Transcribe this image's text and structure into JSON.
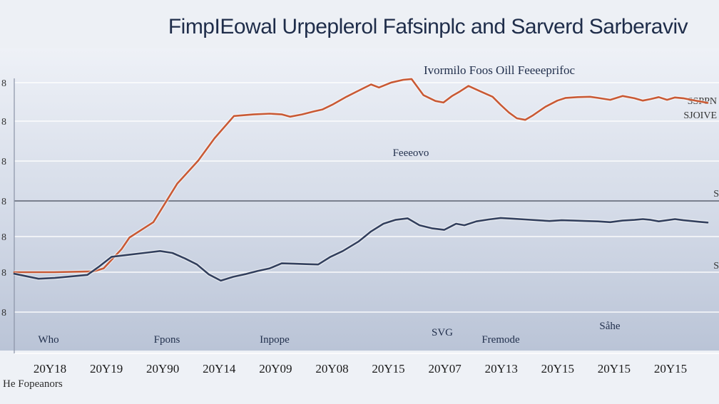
{
  "chart_data": {
    "type": "line",
    "title": "FimpIEowal Urpeplerol Fafsinplc and Sarverd Sarberaviv",
    "subtitle": "Ivormilo Foos Oill Feeeeprifoc",
    "x_tick_labels": [
      "20Y18",
      "20Y19",
      "20Y90",
      "20Y14",
      "20Y09",
      "20Y08",
      "20Y15",
      "20Y07",
      "20Y13",
      "20Y15",
      "20Y15",
      "20Y15"
    ],
    "y_tick_labels": [
      "8",
      "8",
      "8",
      "8",
      "8",
      "8",
      "8"
    ],
    "legend_labels": [
      "SSPPN",
      "SJOIVE"
    ],
    "annotations": [
      {
        "id": "foecoie",
        "text": "Feeeovo"
      },
      {
        "id": "who",
        "text": "Who"
      },
      {
        "id": "fpons",
        "text": "Fpons"
      },
      {
        "id": "inpopo",
        "text": "Inpope"
      },
      {
        "id": "svo",
        "text": "SVG"
      },
      {
        "id": "fremode",
        "text": "Fremode"
      },
      {
        "id": "sahe",
        "text": "Såhe"
      }
    ],
    "footnote": "He Fopeanors",
    "right_marker": "S",
    "series": [
      {
        "color": "#c95a35",
        "points": [
          [
            0,
            60
          ],
          [
            10,
            60
          ],
          [
            20,
            60.2
          ],
          [
            22.5,
            61
          ],
          [
            27,
            66
          ],
          [
            29,
            69
          ],
          [
            35,
            73
          ],
          [
            38,
            78
          ],
          [
            41,
            83
          ],
          [
            46.3,
            89
          ],
          [
            50.4,
            94.8
          ],
          [
            55.3,
            100.6
          ],
          [
            60.2,
            101
          ],
          [
            64.3,
            101.2
          ],
          [
            67.4,
            101
          ],
          [
            69.4,
            100.4
          ],
          [
            72.4,
            101
          ],
          [
            75.5,
            101.8
          ],
          [
            77.6,
            102.3
          ],
          [
            80,
            103.5
          ],
          [
            83.6,
            105.6
          ],
          [
            86.7,
            107.2
          ],
          [
            89.8,
            108.8
          ],
          [
            91.8,
            108
          ],
          [
            94.9,
            109.3
          ],
          [
            97.9,
            110
          ],
          [
            100,
            110.2
          ],
          [
            103,
            106
          ],
          [
            106,
            104.5
          ],
          [
            108,
            104.1
          ],
          [
            110.2,
            105.8
          ],
          [
            112.2,
            107
          ],
          [
            114.3,
            108.4
          ],
          [
            117.3,
            107
          ],
          [
            120.4,
            105.6
          ],
          [
            122.4,
            103.5
          ],
          [
            124.5,
            101.5
          ],
          [
            126.5,
            100
          ],
          [
            128.6,
            99.6
          ],
          [
            130.6,
            100.8
          ],
          [
            133.7,
            103
          ],
          [
            136.7,
            104.6
          ],
          [
            138.8,
            105.3
          ],
          [
            141.8,
            105.5
          ],
          [
            144.9,
            105.6
          ],
          [
            146.9,
            105.3
          ],
          [
            150,
            104.8
          ],
          [
            153.1,
            105.8
          ],
          [
            156.1,
            105.2
          ],
          [
            158.2,
            104.6
          ],
          [
            160.2,
            105
          ],
          [
            162.2,
            105.5
          ],
          [
            164.3,
            104.8
          ],
          [
            166.3,
            105.4
          ],
          [
            168.4,
            105.2
          ],
          [
            170.4,
            104.8
          ],
          [
            172.4,
            104.4
          ],
          [
            174.5,
            104
          ]
        ]
      },
      {
        "color": "#33405e",
        "points": [
          [
            0,
            59.6
          ],
          [
            6.1,
            58.3
          ],
          [
            10.2,
            58.5
          ],
          [
            15.3,
            59
          ],
          [
            18.4,
            59.3
          ],
          [
            21.4,
            61.5
          ],
          [
            24.5,
            64
          ],
          [
            28.6,
            64.5
          ],
          [
            32.7,
            65
          ],
          [
            36.7,
            65.5
          ],
          [
            39.8,
            65
          ],
          [
            42.9,
            63.6
          ],
          [
            46,
            62
          ],
          [
            49,
            59.4
          ],
          [
            52,
            57.8
          ],
          [
            55.1,
            58.8
          ],
          [
            58.2,
            59.5
          ],
          [
            61.2,
            60.3
          ],
          [
            64.3,
            61
          ],
          [
            67.3,
            62.3
          ],
          [
            70.4,
            62.2
          ],
          [
            73.5,
            62.1
          ],
          [
            76.5,
            62
          ],
          [
            79.6,
            64
          ],
          [
            82.7,
            65.5
          ],
          [
            86.7,
            68
          ],
          [
            89.8,
            70.6
          ],
          [
            92.9,
            72.6
          ],
          [
            95.9,
            73.6
          ],
          [
            99,
            74
          ],
          [
            102,
            72.2
          ],
          [
            105.1,
            71.4
          ],
          [
            108.2,
            71
          ],
          [
            111.2,
            72.6
          ],
          [
            113.3,
            72.2
          ],
          [
            116.3,
            73.2
          ],
          [
            119.4,
            73.7
          ],
          [
            122.4,
            74.1
          ],
          [
            125.5,
            73.9
          ],
          [
            128.6,
            73.7
          ],
          [
            131.6,
            73.5
          ],
          [
            134.7,
            73.3
          ],
          [
            137.8,
            73.5
          ],
          [
            140.8,
            73.4
          ],
          [
            143.9,
            73.3
          ],
          [
            146.9,
            73.2
          ],
          [
            150,
            73
          ],
          [
            153.1,
            73.4
          ],
          [
            156.1,
            73.6
          ],
          [
            158.2,
            73.8
          ],
          [
            160.2,
            73.6
          ],
          [
            162.2,
            73.2
          ],
          [
            164.3,
            73.5
          ],
          [
            166.3,
            73.8
          ],
          [
            168.4,
            73.5
          ],
          [
            170.4,
            73.3
          ],
          [
            172.4,
            73.1
          ],
          [
            174.5,
            72.9
          ]
        ]
      }
    ],
    "xlim": [
      0,
      174.5
    ],
    "ylim": [
      44,
      116
    ],
    "grid": true
  }
}
